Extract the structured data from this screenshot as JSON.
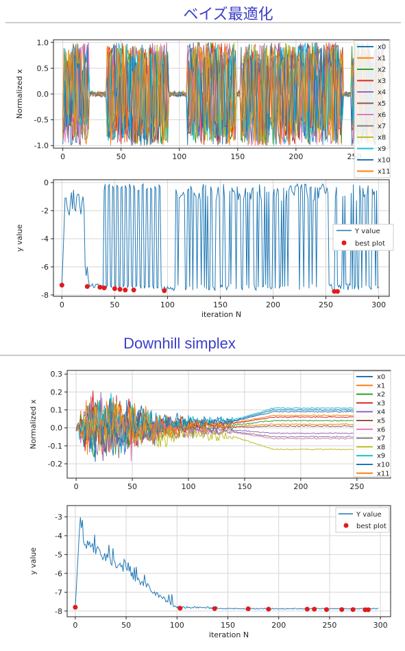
{
  "colors": {
    "title": "#3b3fc6",
    "series": [
      "#1f77b4",
      "#ff7f0e",
      "#2ca02c",
      "#d62728",
      "#9467bd",
      "#8c564b",
      "#e377c2",
      "#7f7f7f",
      "#bcbd22",
      "#17becf",
      "#1f77b4",
      "#ff7f0e"
    ],
    "best": "#e31a1c"
  },
  "chart_data": [
    {
      "type": "line",
      "section_title": "ベイズ最適化",
      "ylabel": "Normalized x",
      "xlabel": "",
      "xlim": [
        -8,
        280
      ],
      "ylim": [
        -1.05,
        1.05
      ],
      "xticks": [
        0,
        50,
        100,
        150,
        200,
        250
      ],
      "yticks": [
        -1.0,
        -0.5,
        0.0,
        0.5,
        1.0
      ],
      "ytick_labels": [
        "-1.0",
        "-0.5",
        "0.0",
        "0.5",
        "1.0"
      ],
      "grid": true,
      "legend_position": "right",
      "series_names": [
        "x0",
        "x1",
        "x2",
        "x3",
        "x4",
        "x5",
        "x6",
        "x7",
        "x8",
        "x9",
        "x10",
        "x11"
      ],
      "n_iterations": 300,
      "description_values": {
        "exploration_segments": [
          [
            0,
            22
          ],
          [
            38,
            90
          ],
          [
            107,
            148
          ],
          [
            153,
            240
          ],
          [
            248,
            275
          ]
        ],
        "exploitation_level": 0.0
      }
    },
    {
      "type": "line",
      "ylabel": "y value",
      "xlabel": "iteration N",
      "xlim": [
        -8,
        310
      ],
      "ylim": [
        -8.1,
        0.2
      ],
      "xticks": [
        0,
        50,
        100,
        150,
        200,
        250,
        300
      ],
      "yticks": [
        -8,
        -6,
        -4,
        -2,
        0
      ],
      "grid": true,
      "legend_position": "center-right",
      "series": [
        {
          "name": "Y value"
        },
        {
          "name": "best plot",
          "points": [
            [
              0,
              -7.3
            ],
            [
              24,
              -7.4
            ],
            [
              36,
              -7.45
            ],
            [
              40,
              -7.5
            ],
            [
              50,
              -7.55
            ],
            [
              55,
              -7.6
            ],
            [
              60,
              -7.65
            ],
            [
              68,
              -7.65
            ],
            [
              97,
              -7.7
            ],
            [
              258,
              -7.75
            ],
            [
              261,
              -7.75
            ]
          ]
        }
      ]
    },
    {
      "type": "line",
      "section_title": "Downhill simplex",
      "ylabel": "Normalized x",
      "xlabel": "",
      "xlim": [
        -8,
        280
      ],
      "ylim": [
        -0.28,
        0.32
      ],
      "xticks": [
        0,
        50,
        100,
        150,
        200,
        250
      ],
      "yticks": [
        -0.2,
        -0.1,
        0.0,
        0.1,
        0.2,
        0.3
      ],
      "ytick_labels": [
        "-0.2",
        "-0.1",
        "0.0",
        "0.1",
        "0.2",
        "0.3"
      ],
      "grid": true,
      "legend_position": "right",
      "series_names": [
        "x0",
        "x1",
        "x2",
        "x3",
        "x4",
        "x5",
        "x6",
        "x7",
        "x8",
        "x9",
        "x10",
        "x11"
      ],
      "final_values": [
        0.1,
        0.07,
        0.04,
        0.06,
        -0.03,
        0.01,
        -0.06,
        -0.05,
        -0.12,
        0.11,
        0.09,
        0.02
      ]
    },
    {
      "type": "line",
      "ylabel": "y value",
      "xlabel": "iteration N",
      "xlim": [
        -8,
        310
      ],
      "ylim": [
        -8.3,
        -2.4
      ],
      "xticks": [
        0,
        50,
        100,
        150,
        200,
        250,
        300
      ],
      "yticks": [
        -8,
        -7,
        -6,
        -5,
        -4,
        -3
      ],
      "grid": true,
      "legend_position": "top-right",
      "series": [
        {
          "name": "Y value"
        },
        {
          "name": "best plot",
          "points": [
            [
              0,
              -7.8
            ],
            [
              103,
              -7.85
            ],
            [
              137,
              -7.87
            ],
            [
              170,
              -7.88
            ],
            [
              190,
              -7.9
            ],
            [
              228,
              -7.9
            ],
            [
              235,
              -7.9
            ],
            [
              247,
              -7.92
            ],
            [
              262,
              -7.92
            ],
            [
              273,
              -7.92
            ],
            [
              285,
              -7.93
            ],
            [
              288,
              -7.93
            ]
          ]
        }
      ]
    }
  ]
}
